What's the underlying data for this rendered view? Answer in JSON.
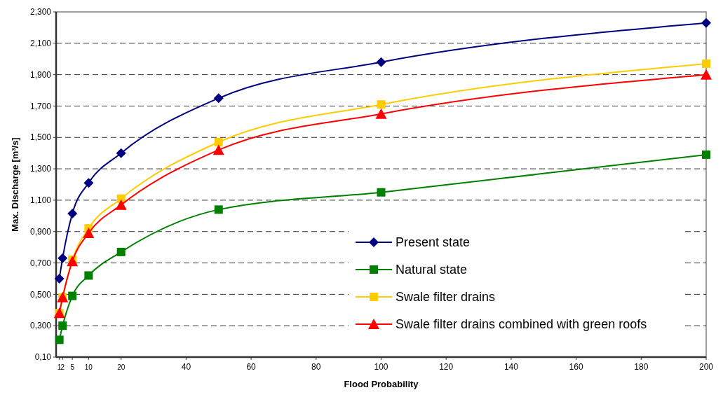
{
  "chart_data": {
    "type": "line",
    "xlabel": "Flood Probability",
    "ylabel": "Max. Discharge [m³/s]",
    "x": [
      1,
      2,
      5,
      10,
      20,
      50,
      100,
      200
    ],
    "xlim": [
      0,
      200
    ],
    "xticks": [
      1,
      2,
      5,
      10,
      20,
      40,
      60,
      80,
      100,
      120,
      140,
      160,
      180,
      200
    ],
    "ylim": [
      0.1,
      2.3
    ],
    "yticks": [
      {
        "value": 0.1,
        "label": "0,10"
      },
      {
        "value": 0.3,
        "label": "0,300"
      },
      {
        "value": 0.5,
        "label": "0,500"
      },
      {
        "value": 0.7,
        "label": "0,700"
      },
      {
        "value": 0.9,
        "label": "0,900"
      },
      {
        "value": 1.1,
        "label": "1,100"
      },
      {
        "value": 1.3,
        "label": "1,300"
      },
      {
        "value": 1.5,
        "label": "1,500"
      },
      {
        "value": 1.7,
        "label": "1,700"
      },
      {
        "value": 1.9,
        "label": "1,900"
      },
      {
        "value": 2.1,
        "label": "2,100"
      },
      {
        "value": 2.3,
        "label": "2,300"
      }
    ],
    "grid": "y",
    "legend": "bottom right",
    "line_style": "solid",
    "series": [
      {
        "name": "Present state",
        "color": "#000080",
        "marker": "diamond",
        "values": [
          0.6,
          0.73,
          1.015,
          1.21,
          1.4,
          1.75,
          1.98,
          2.23
        ]
      },
      {
        "name": "Natural state",
        "color": "#008000",
        "marker": "square",
        "values": [
          0.21,
          0.3,
          0.49,
          0.62,
          0.77,
          1.04,
          1.15,
          1.39
        ]
      },
      {
        "name": "Swale filter drains",
        "color": "#ffcc00",
        "marker": "square",
        "values": [
          0.38,
          0.48,
          0.72,
          0.92,
          1.11,
          1.47,
          1.71,
          1.97
        ]
      },
      {
        "name": "Swale filter drains combined with green roofs",
        "color": "#ff0000",
        "marker": "triangle",
        "values": [
          0.38,
          0.48,
          0.71,
          0.89,
          1.07,
          1.42,
          1.65,
          1.9
        ]
      }
    ]
  }
}
